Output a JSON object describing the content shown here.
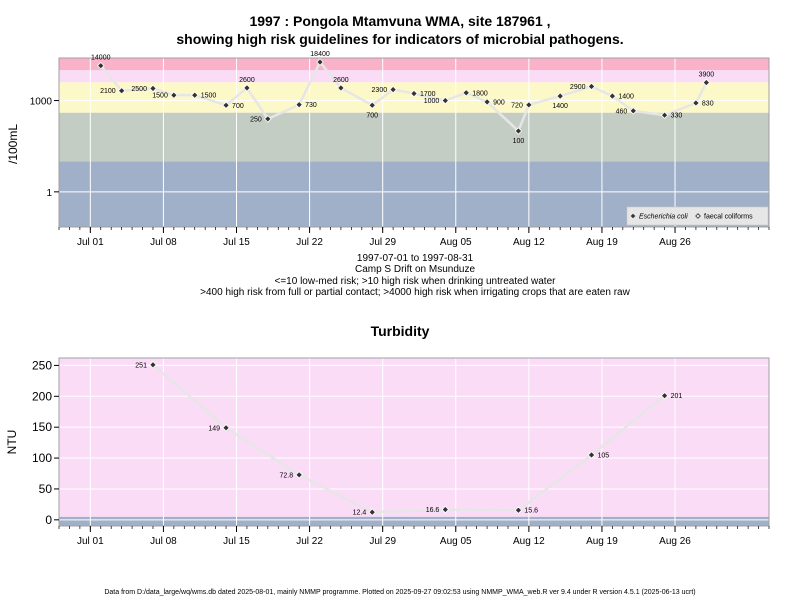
{
  "page": {
    "title_line1": "1997 : Pongola Mtamvuna WMA, site 187961 ,",
    "title_line2": "showing high risk guidelines for indicators of microbial pathogens.",
    "caption_range": "1997-07-01 to 1997-08-31",
    "caption_site": "Camp S Drift on Msunduze",
    "caption_risk1": "<=10 low-med risk; >10 high risk when drinking untreated water",
    "caption_risk2": ">400 high risk from full or partial contact; >4000 high risk when irrigating crops that are eaten raw",
    "turbidity_title": "Turbidity",
    "footer": "Data from D:/data_large/wq/wms.db dated 2025-08-01, mainly NMMP programme. Plotted on 2025-09-27 09:02:53 using NMMP_WMA_web.R ver 9.4 under R version 4.5.1 (2025-06-13 ucrt)"
  },
  "chart_data": [
    {
      "type": "scatter",
      "ylabel": "/100mL",
      "y_scale": "log10",
      "ylim": [
        0.07,
        25000
      ],
      "xlim": [
        "1997-06-28",
        "1997-09-04"
      ],
      "x_ticks": [
        {
          "date": "1997-07-01",
          "label": "Jul 01"
        },
        {
          "date": "1997-07-08",
          "label": "Jul 08"
        },
        {
          "date": "1997-07-15",
          "label": "Jul 15"
        },
        {
          "date": "1997-07-22",
          "label": "Jul 22"
        },
        {
          "date": "1997-07-29",
          "label": "Jul 29"
        },
        {
          "date": "1997-08-05",
          "label": "Aug 05"
        },
        {
          "date": "1997-08-12",
          "label": "Aug 12"
        },
        {
          "date": "1997-08-19",
          "label": "Aug 19"
        },
        {
          "date": "1997-08-26",
          "label": "Aug 26"
        }
      ],
      "y_ticks": [
        {
          "value": 1,
          "label": "1"
        },
        {
          "value": 1000,
          "label": "1000"
        }
      ],
      "bands": [
        {
          "from": 0.07,
          "to": 10,
          "color": "#a0b0c8"
        },
        {
          "from": 10,
          "to": 400,
          "color": "#c4cdc3"
        },
        {
          "from": 400,
          "to": 4000,
          "color": "#fdf8c8"
        },
        {
          "from": 4000,
          "to": 10000,
          "color": "#fadcf7"
        },
        {
          "from": 10000,
          "to": 25000,
          "color": "#f9b2c8"
        }
      ],
      "legend": {
        "position": "bottom-right",
        "items": [
          {
            "label": "Escherichia coli",
            "marker": "diamond",
            "italic": true
          },
          {
            "label": "faecal coliforms",
            "marker": "open-diamond",
            "italic": false
          }
        ]
      },
      "series": [
        {
          "name": "Escherichia coli",
          "points": [
            {
              "x": "1997-07-02",
              "y": 14000,
              "label": "14000",
              "label_side": "above"
            },
            {
              "x": "1997-07-04",
              "y": 2100,
              "label": "2100",
              "label_side": "left"
            },
            {
              "x": "1997-07-07",
              "y": 2500,
              "label": "2500",
              "label_side": "left"
            },
            {
              "x": "1997-07-09",
              "y": 1500,
              "label": "1500",
              "label_side": "left"
            },
            {
              "x": "1997-07-11",
              "y": 1500,
              "label": "1500",
              "label_side": "right"
            },
            {
              "x": "1997-07-14",
              "y": 700,
              "label": "700",
              "label_side": "right"
            },
            {
              "x": "1997-07-16",
              "y": 2600,
              "label": "2600",
              "label_side": "above"
            },
            {
              "x": "1997-07-18",
              "y": 250,
              "label": "250",
              "label_side": "left"
            },
            {
              "x": "1997-07-21",
              "y": 730,
              "label": "730",
              "label_side": "right"
            },
            {
              "x": "1997-07-23",
              "y": 18400,
              "label": "18400",
              "label_side": "above"
            },
            {
              "x": "1997-07-25",
              "y": 2600,
              "label": "2600",
              "label_side": "above"
            },
            {
              "x": "1997-07-28",
              "y": 700,
              "label": "700",
              "label_side": "below"
            },
            {
              "x": "1997-07-30",
              "y": 2300,
              "label": "2300",
              "label_side": "left"
            },
            {
              "x": "1997-08-01",
              "y": 1700,
              "label": "1700",
              "label_side": "right"
            },
            {
              "x": "1997-08-04",
              "y": 1000,
              "label": "1000",
              "label_side": "left"
            },
            {
              "x": "1997-08-06",
              "y": 1800,
              "label": "1800",
              "label_side": "right"
            },
            {
              "x": "1997-08-08",
              "y": 900,
              "label": "900",
              "label_side": "right"
            },
            {
              "x": "1997-08-11",
              "y": 100,
              "label": "100",
              "label_side": "below"
            },
            {
              "x": "1997-08-12",
              "y": 720,
              "label": "720",
              "label_side": "left"
            },
            {
              "x": "1997-08-15",
              "y": 1400,
              "label": "1400",
              "label_side": "below"
            },
            {
              "x": "1997-08-18",
              "y": 2900,
              "label": "2900",
              "label_side": "left"
            },
            {
              "x": "1997-08-20",
              "y": 1400,
              "label": "1400",
              "label_side": "right"
            },
            {
              "x": "1997-08-22",
              "y": 460,
              "label": "460",
              "label_side": "left"
            },
            {
              "x": "1997-08-25",
              "y": 330,
              "label": "330",
              "label_side": "right"
            },
            {
              "x": "1997-08-28",
              "y": 830,
              "label": "830",
              "label_side": "right"
            },
            {
              "x": "1997-08-29",
              "y": 3900,
              "label": "3900",
              "label_side": "above"
            }
          ]
        }
      ]
    },
    {
      "type": "line",
      "title": "Turbidity",
      "ylabel": "NTU",
      "ylim": [
        -10,
        262
      ],
      "xlim": [
        "1997-06-28",
        "1997-09-04"
      ],
      "x_ticks": [
        {
          "date": "1997-07-01",
          "label": "Jul 01"
        },
        {
          "date": "1997-07-08",
          "label": "Jul 08"
        },
        {
          "date": "1997-07-15",
          "label": "Jul 15"
        },
        {
          "date": "1997-07-22",
          "label": "Jul 22"
        },
        {
          "date": "1997-07-29",
          "label": "Jul 29"
        },
        {
          "date": "1997-08-05",
          "label": "Aug 05"
        },
        {
          "date": "1997-08-12",
          "label": "Aug 12"
        },
        {
          "date": "1997-08-19",
          "label": "Aug 19"
        },
        {
          "date": "1997-08-26",
          "label": "Aug 26"
        }
      ],
      "y_ticks": [
        0,
        50,
        100,
        150,
        200,
        250
      ],
      "bands": [
        {
          "from": -10,
          "to": 5,
          "color": "#a0b0c8"
        },
        {
          "from": 5,
          "to": 262,
          "color": "#fadcf7"
        }
      ],
      "series": [
        {
          "points": [
            {
              "x": "1997-07-07",
              "y": 251,
              "label": "251",
              "label_side": "left"
            },
            {
              "x": "1997-07-14",
              "y": 149,
              "label": "149",
              "label_side": "left"
            },
            {
              "x": "1997-07-21",
              "y": 72.8,
              "label": "72.8",
              "label_side": "left"
            },
            {
              "x": "1997-07-28",
              "y": 12.4,
              "label": "12.4",
              "label_side": "left"
            },
            {
              "x": "1997-08-04",
              "y": 16.6,
              "label": "16.6",
              "label_side": "left"
            },
            {
              "x": "1997-08-11",
              "y": 15.6,
              "label": "15.6",
              "label_side": "right"
            },
            {
              "x": "1997-08-18",
              "y": 105,
              "label": "105",
              "label_side": "right"
            },
            {
              "x": "1997-08-25",
              "y": 201,
              "label": "201",
              "label_side": "right"
            }
          ]
        }
      ]
    }
  ]
}
